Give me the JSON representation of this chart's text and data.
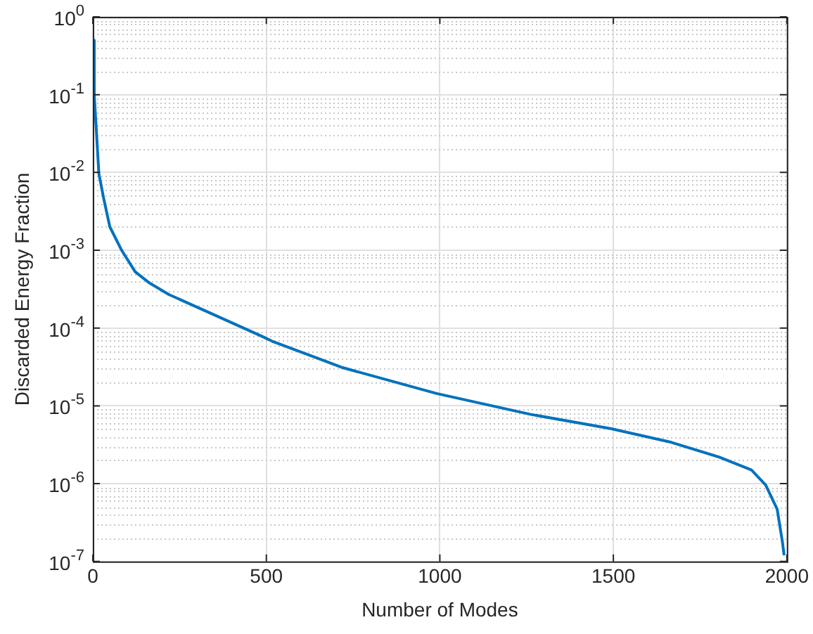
{
  "chart_data": {
    "type": "line",
    "xlabel": "Number of Modes",
    "ylabel": "Discarded Energy Fraction",
    "x": [
      1,
      4,
      17.5,
      31,
      49,
      83,
      122,
      163,
      219,
      354,
      488,
      516,
      720,
      991,
      1260,
      1492,
      1667,
      1804,
      1898,
      1939,
      1972,
      1987,
      1992
    ],
    "series": [
      {
        "color": "#0072bd",
        "values": [
          0.5,
          0.1,
          0.0096,
          0.0047,
          0.002,
          0.001,
          0.00053,
          0.00038,
          0.00027,
          0.000145,
          7.8e-05,
          6.8e-05,
          3.1e-05,
          1.44e-05,
          7.8e-06,
          5.1e-06,
          3.4e-06,
          2.2e-06,
          1.5e-06,
          9.6e-07,
          4.7e-07,
          1.8e-07,
          1.2e-07
        ]
      }
    ],
    "xlim": [
      0,
      2000
    ],
    "xticks": [
      0,
      500,
      1000,
      1500,
      2000
    ],
    "ylim": [
      1e-07,
      1
    ],
    "yticks": [
      {
        "value": 1e-07,
        "label": "10$^{-7}$"
      },
      {
        "value": 1e-06,
        "label": "10$^{-6}$"
      },
      {
        "value": 1e-05,
        "label": "10$^{-5}$"
      },
      {
        "value": 0.0001,
        "label": "10$^{-4}$"
      },
      {
        "value": 0.001,
        "label": "10$^{-3}$"
      },
      {
        "value": 0.01,
        "label": "10$^{-2}$"
      },
      {
        "value": 0.1,
        "label": "10$^{-1}$"
      },
      {
        "value": 1,
        "label": "10$^{0}$"
      }
    ],
    "log": "y",
    "grid": true,
    "legend": false,
    "marker": "none",
    "line_style": "solid"
  }
}
